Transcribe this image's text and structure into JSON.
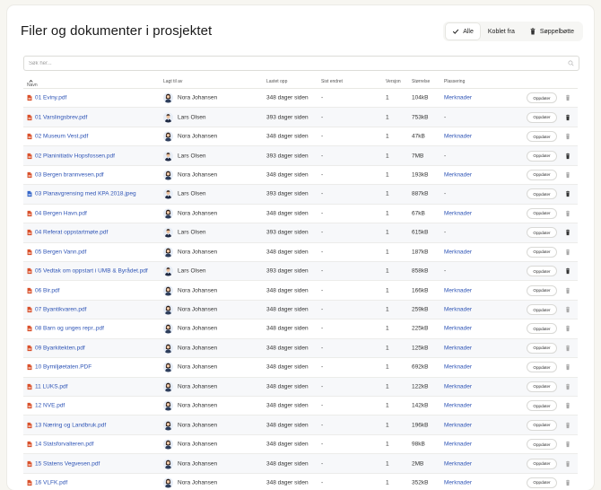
{
  "header": {
    "title": "Filer og dokumenter i prosjektet"
  },
  "filters": [
    {
      "label": "Alle",
      "icon": "check-icon",
      "active": true
    },
    {
      "label": "Koblet fra",
      "icon": "",
      "active": false
    },
    {
      "label": "Søppelbøtte",
      "icon": "trash-icon",
      "active": false
    }
  ],
  "search": {
    "placeholder": "Søk her..."
  },
  "table": {
    "columns": {
      "name": "Navn",
      "uploaded_by": "Lagt til av",
      "uploaded": "Lastet opp",
      "modified": "Sist endret",
      "version": "Versjon",
      "size": "Størrelse",
      "location": "Plassering"
    },
    "open_label": "Oppdater",
    "rows": [
      {
        "file": "01 Eviny.pdf",
        "type": "pdf",
        "user": "Nora Johansen",
        "avatar": "female",
        "uploaded": "348 dager siden",
        "modified": "-",
        "version": "1",
        "size": "104kB",
        "location": "Merknader",
        "trash": "light"
      },
      {
        "file": "01 Varslingsbrev.pdf",
        "type": "pdf",
        "user": "Lars Olsen",
        "avatar": "male",
        "uploaded": "393 dager siden",
        "modified": "-",
        "version": "1",
        "size": "753kB",
        "location": "-",
        "trash": "dark"
      },
      {
        "file": "02 Museum Vest.pdf",
        "type": "pdf",
        "user": "Nora Johansen",
        "avatar": "female",
        "uploaded": "348 dager siden",
        "modified": "-",
        "version": "1",
        "size": "47kB",
        "location": "Merknader",
        "trash": "light"
      },
      {
        "file": "02 Planinitiativ Hopsfossen.pdf",
        "type": "pdf",
        "user": "Lars Olsen",
        "avatar": "male",
        "uploaded": "393 dager siden",
        "modified": "-",
        "version": "1",
        "size": "7MB",
        "location": "-",
        "trash": "dark"
      },
      {
        "file": "03 Bergen brannvesen.pdf",
        "type": "pdf",
        "user": "Nora Johansen",
        "avatar": "female",
        "uploaded": "348 dager siden",
        "modified": "-",
        "version": "1",
        "size": "193kB",
        "location": "Merknader",
        "trash": "light"
      },
      {
        "file": "03 Planavgrensing med KPA 2018.jpeg",
        "type": "image",
        "user": "Lars Olsen",
        "avatar": "male",
        "uploaded": "393 dager siden",
        "modified": "-",
        "version": "1",
        "size": "887kB",
        "location": "-",
        "trash": "dark"
      },
      {
        "file": "04 Bergen Havn.pdf",
        "type": "pdf",
        "user": "Nora Johansen",
        "avatar": "female",
        "uploaded": "348 dager siden",
        "modified": "-",
        "version": "1",
        "size": "67kB",
        "location": "Merknader",
        "trash": "light"
      },
      {
        "file": "04 Referat oppstartmøte.pdf",
        "type": "pdf",
        "user": "Lars Olsen",
        "avatar": "male",
        "uploaded": "393 dager siden",
        "modified": "-",
        "version": "1",
        "size": "615kB",
        "location": "-",
        "trash": "dark"
      },
      {
        "file": "05 Bergen Vann.pdf",
        "type": "pdf",
        "user": "Nora Johansen",
        "avatar": "female",
        "uploaded": "348 dager siden",
        "modified": "-",
        "version": "1",
        "size": "187kB",
        "location": "Merknader",
        "trash": "light"
      },
      {
        "file": "05 Vedtak om oppstart i UMB & Byrådet.pdf",
        "type": "pdf",
        "user": "Lars Olsen",
        "avatar": "male",
        "uploaded": "393 dager siden",
        "modified": "-",
        "version": "1",
        "size": "858kB",
        "location": "-",
        "trash": "dark"
      },
      {
        "file": "06 Bir.pdf",
        "type": "pdf",
        "user": "Nora Johansen",
        "avatar": "female",
        "uploaded": "348 dager siden",
        "modified": "-",
        "version": "1",
        "size": "166kB",
        "location": "Merknader",
        "trash": "light"
      },
      {
        "file": "07 Byantikvaren.pdf",
        "type": "pdf",
        "user": "Nora Johansen",
        "avatar": "female",
        "uploaded": "348 dager siden",
        "modified": "-",
        "version": "1",
        "size": "259kB",
        "location": "Merknader",
        "trash": "light"
      },
      {
        "file": "08 Barn og unges repr..pdf",
        "type": "pdf",
        "user": "Nora Johansen",
        "avatar": "female",
        "uploaded": "348 dager siden",
        "modified": "-",
        "version": "1",
        "size": "225kB",
        "location": "Merknader",
        "trash": "light"
      },
      {
        "file": "09 Byarkitekten.pdf",
        "type": "pdf",
        "user": "Nora Johansen",
        "avatar": "female",
        "uploaded": "348 dager siden",
        "modified": "-",
        "version": "1",
        "size": "125kB",
        "location": "Merknader",
        "trash": "light"
      },
      {
        "file": "10 Bymiljøetaten.PDF",
        "type": "pdf",
        "user": "Nora Johansen",
        "avatar": "female",
        "uploaded": "348 dager siden",
        "modified": "-",
        "version": "1",
        "size": "692kB",
        "location": "Merknader",
        "trash": "light"
      },
      {
        "file": "11 LUKS.pdf",
        "type": "pdf",
        "user": "Nora Johansen",
        "avatar": "female",
        "uploaded": "348 dager siden",
        "modified": "-",
        "version": "1",
        "size": "122kB",
        "location": "Merknader",
        "trash": "light"
      },
      {
        "file": "12 NVE.pdf",
        "type": "pdf",
        "user": "Nora Johansen",
        "avatar": "female",
        "uploaded": "348 dager siden",
        "modified": "-",
        "version": "1",
        "size": "142kB",
        "location": "Merknader",
        "trash": "light"
      },
      {
        "file": "13 Næring og Landbruk.pdf",
        "type": "pdf",
        "user": "Nora Johansen",
        "avatar": "female",
        "uploaded": "348 dager siden",
        "modified": "-",
        "version": "1",
        "size": "196kB",
        "location": "Merknader",
        "trash": "light"
      },
      {
        "file": "14 Statsforvalteren.pdf",
        "type": "pdf",
        "user": "Nora Johansen",
        "avatar": "female",
        "uploaded": "348 dager siden",
        "modified": "-",
        "version": "1",
        "size": "98kB",
        "location": "Merknader",
        "trash": "light"
      },
      {
        "file": "15 Statens Vegvesen.pdf",
        "type": "pdf",
        "user": "Nora Johansen",
        "avatar": "female",
        "uploaded": "348 dager siden",
        "modified": "-",
        "version": "1",
        "size": "2MB",
        "location": "Merknader",
        "trash": "light"
      },
      {
        "file": "16 VLFK.pdf",
        "type": "pdf",
        "user": "Nora Johansen",
        "avatar": "female",
        "uploaded": "348 dager siden",
        "modified": "-",
        "version": "1",
        "size": "352kB",
        "location": "Merknader",
        "trash": "light"
      }
    ]
  },
  "colors": {
    "link": "#2f55b6",
    "pdf": "#d9502a",
    "image": "#3566c9"
  }
}
